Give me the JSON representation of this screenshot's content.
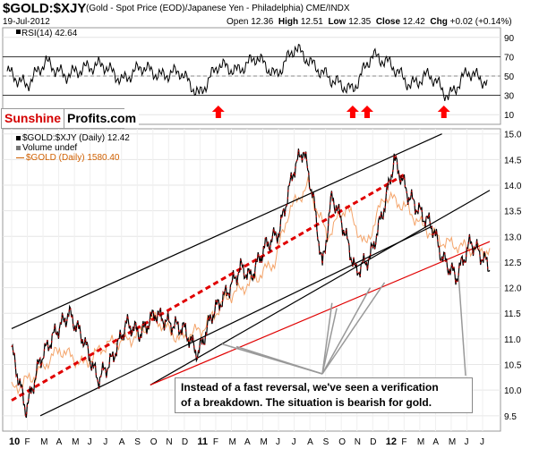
{
  "header": {
    "symbol": "$GOLD:$XJY",
    "description": "(Gold - Spot Price (EOD)/Japanese Yen - Philadelphia) CME/INDX",
    "date": "19-Jul-2012",
    "open_label": "Open",
    "open": "12.36",
    "high_label": "High",
    "high": "12.51",
    "low_label": "Low",
    "low": "12.35",
    "close_label": "Close",
    "close": "12.42",
    "chg_label": "Chg",
    "chg": "+0.02 (+0.14%)"
  },
  "logo": {
    "part1": "Sunshine",
    "part2": "Profits.com"
  },
  "annotation": {
    "line1": "Instead of a fast reversal, we've seen a verification",
    "line2": "of a breakdown. The situation is bearish for gold."
  },
  "colors": {
    "price": "#000000",
    "gold": "#f4a46a",
    "red": "#e00000",
    "arrow": "#ff0000"
  },
  "chart_data": [
    {
      "type": "line",
      "panel": "rsi",
      "legend": "RSI(14) 42.64",
      "ylim": [
        0,
        100
      ],
      "yticks": [
        10,
        30,
        50,
        70,
        90
      ],
      "hlines": [
        30,
        70
      ],
      "x": [
        0,
        0.04,
        0.08,
        0.12,
        0.16,
        0.2,
        0.24,
        0.28,
        0.32,
        0.36,
        0.4,
        0.44,
        0.48,
        0.52,
        0.56,
        0.6,
        0.64,
        0.68,
        0.72,
        0.76,
        0.8,
        0.84,
        0.88,
        0.92,
        0.96,
        1
      ],
      "values": [
        55,
        40,
        65,
        50,
        58,
        62,
        45,
        60,
        50,
        55,
        30,
        62,
        55,
        70,
        50,
        80,
        60,
        45,
        35,
        72,
        62,
        40,
        52,
        28,
        55,
        43
      ],
      "up_arrows_x": [
        0.44,
        0.72,
        0.75,
        0.91
      ]
    },
    {
      "type": "line",
      "panel": "price",
      "legend": [
        "$GOLD:$XJY (Daily) 12.42",
        "Volume undef",
        "$GOLD (Daily) 1580.40"
      ],
      "ylim": [
        9.2,
        15.1
      ],
      "yticks": [
        9.5,
        10.0,
        10.5,
        11.0,
        11.5,
        12.0,
        12.5,
        13.0,
        13.5,
        14.0,
        14.5,
        15.0
      ],
      "xtick_labels": [
        "10",
        "F",
        "M",
        "A",
        "M",
        "J",
        "J",
        "A",
        "S",
        "O",
        "N",
        "D",
        "11",
        "F",
        "M",
        "A",
        "M",
        "J",
        "J",
        "A",
        "S",
        "O",
        "N",
        "D",
        "12",
        "F",
        "M",
        "A",
        "M",
        "J",
        "J"
      ],
      "series": [
        {
          "name": "$GOLD:$XJY (Daily) 12.42",
          "x": [
            0,
            0.03,
            0.06,
            0.09,
            0.12,
            0.15,
            0.18,
            0.21,
            0.24,
            0.27,
            0.3,
            0.33,
            0.36,
            0.39,
            0.42,
            0.45,
            0.48,
            0.5,
            0.53,
            0.56,
            0.59,
            0.61,
            0.63,
            0.65,
            0.67,
            0.69,
            0.72,
            0.75,
            0.78,
            0.8,
            0.83,
            0.86,
            0.88,
            0.9,
            0.93,
            0.96,
            1
          ],
          "values": [
            10.8,
            9.6,
            10.6,
            11.1,
            11.5,
            11.0,
            10.2,
            10.6,
            11.3,
            11.1,
            11.5,
            11.3,
            11.2,
            10.7,
            11.5,
            11.9,
            12.4,
            12.2,
            12.8,
            13.1,
            14.3,
            14.7,
            13.8,
            12.4,
            13.8,
            13.3,
            12.3,
            12.6,
            13.6,
            14.5,
            13.8,
            13.4,
            13.2,
            12.6,
            12.2,
            12.9,
            12.4
          ]
        },
        {
          "name": "$GOLD (Daily) 1580.40",
          "x": [
            0,
            0.05,
            0.1,
            0.15,
            0.2,
            0.25,
            0.3,
            0.35,
            0.4,
            0.45,
            0.5,
            0.55,
            0.58,
            0.62,
            0.66,
            0.7,
            0.74,
            0.78,
            0.82,
            0.86,
            0.9,
            0.94,
            1
          ],
          "values": [
            10.0,
            10.3,
            10.8,
            10.5,
            10.9,
            11.0,
            11.4,
            11.0,
            11.2,
            11.8,
            12.1,
            12.5,
            13.5,
            14.0,
            13.0,
            13.6,
            12.8,
            13.8,
            13.6,
            13.2,
            12.9,
            12.8,
            12.7
          ]
        }
      ],
      "trend_lines": [
        {
          "name": "upper-channel",
          "color": "#000000",
          "from": [
            0,
            11.2
          ],
          "to": [
            0.9,
            15.0
          ]
        },
        {
          "name": "upper-inner-channel",
          "color": "#000000",
          "from": [
            0.29,
            10.1
          ],
          "to": [
            1,
            13.9
          ]
        },
        {
          "name": "lower-channel",
          "color": "#000000",
          "from": [
            0.06,
            9.5
          ],
          "to": [
            0.88,
            13.2
          ]
        },
        {
          "name": "red-support",
          "color": "#e00000",
          "from": [
            0.29,
            10.1
          ],
          "to": [
            1,
            12.9
          ]
        },
        {
          "name": "red-dashed-trend",
          "color": "#e00000",
          "dashed": true,
          "from": [
            0,
            9.8
          ],
          "to": [
            0.82,
            14.2
          ]
        }
      ]
    }
  ]
}
